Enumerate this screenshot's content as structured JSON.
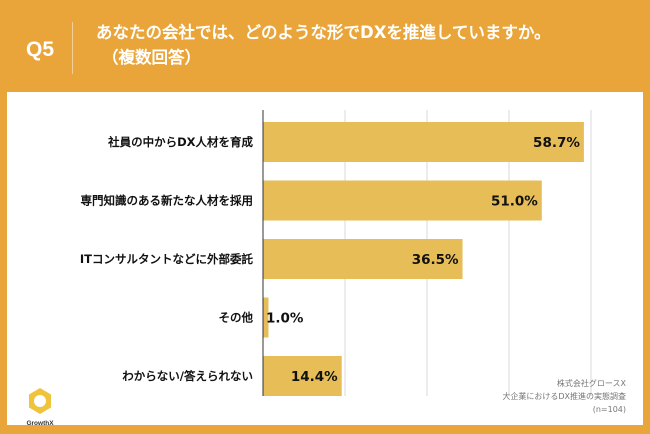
{
  "header": {
    "question_no": "Q5",
    "title_line1": "あなたの会社では、どのような形でDXを推進していますか。",
    "title_line2": "（複数回答）"
  },
  "source": {
    "line1": "株式会社グロースX",
    "line2": "大企業におけるDX推進の実態調査",
    "line3": "(n=104)"
  },
  "logo": {
    "text": "GrowthX"
  },
  "colors": {
    "bar": "#e6bd57",
    "background": "#e9a53a"
  },
  "chart_data": {
    "type": "bar",
    "orientation": "horizontal",
    "categories": [
      "社員の中からDX人材を育成",
      "専門知識のある新たな人材を採用",
      "ITコンサルタントなどに外部委託",
      "その他",
      "わからない/答えられない"
    ],
    "values": [
      58.7,
      51.0,
      36.5,
      1.0,
      14.4
    ],
    "value_labels": [
      "58.7%",
      "51.0%",
      "36.5%",
      "1.0%",
      "14.4%"
    ],
    "xlim": [
      0,
      60
    ],
    "grid_step": 15,
    "grid": true
  }
}
